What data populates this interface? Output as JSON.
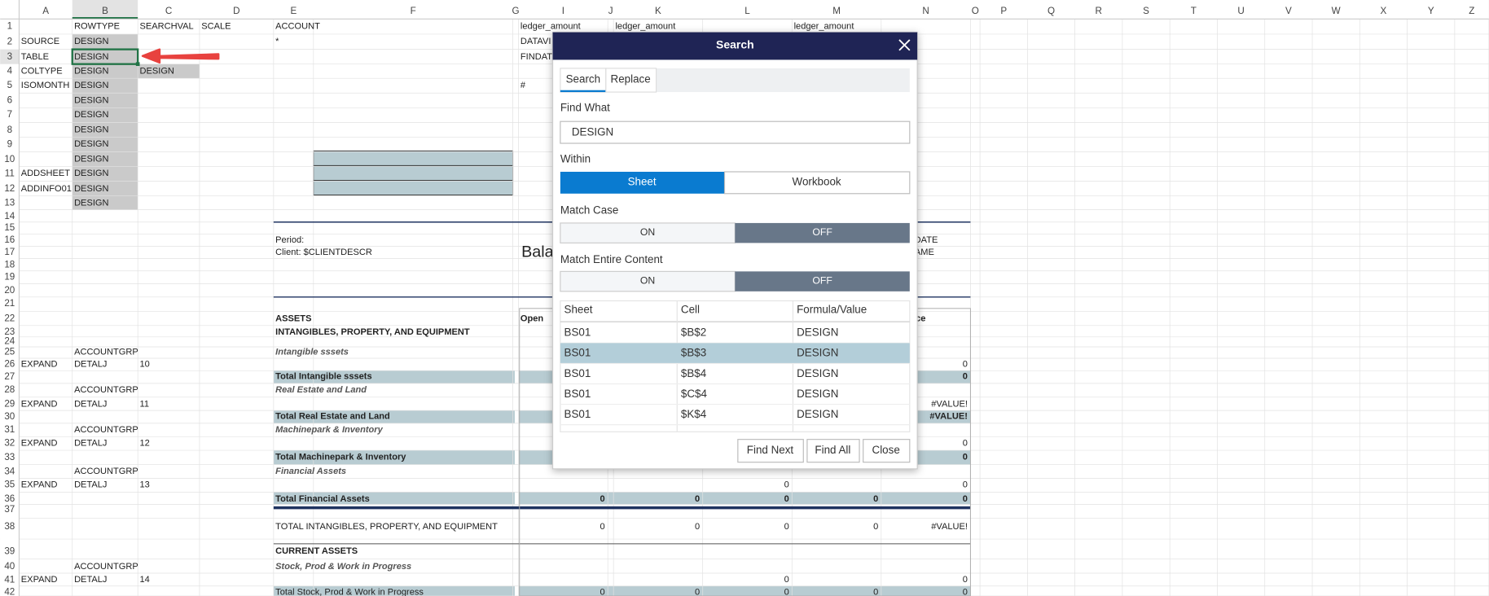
{
  "sheet": {
    "columns": [
      "A",
      "B",
      "C",
      "D",
      "E",
      "F",
      "G",
      "I",
      "J",
      "K",
      "L",
      "M",
      "N",
      "O",
      "P",
      "Q",
      "R",
      "S",
      "T",
      "U",
      "V",
      "W",
      "X",
      "Y",
      "Z"
    ],
    "row_numbers": [
      "1",
      "2",
      "3",
      "4",
      "5",
      "6",
      "7",
      "8",
      "9",
      "10",
      "11",
      "12",
      "13",
      "14",
      "15",
      "16",
      "17",
      "18",
      "19",
      "20",
      "21",
      "22",
      "23",
      "24",
      "25",
      "26",
      "27",
      "28",
      "29",
      "30",
      "31",
      "32",
      "33",
      "34",
      "35",
      "36",
      "37",
      "38",
      "39",
      "40",
      "41",
      "42"
    ],
    "cells": {
      "1": {
        "B": "ROWTYPE",
        "C": "SEARCHVAL",
        "D": "SCALE",
        "E": "ACCOUNT",
        "I": "ledger_amount",
        "K": "ledger_amount",
        "M": "ledger_amount"
      },
      "2": {
        "A": "SOURCE",
        "B": "DESIGN",
        "E": "*",
        "I": "DATAVI"
      },
      "3": {
        "A": "TABLE",
        "B": "DESIGN",
        "I": "FINDAT"
      },
      "4": {
        "A": "COLTYPE",
        "B": "DESIGN",
        "C": "DESIGN"
      },
      "5": {
        "A": "ISOMONTH",
        "B": "DESIGN",
        "I": "#"
      },
      "6": {
        "B": "DESIGN"
      },
      "7": {
        "B": "DESIGN"
      },
      "8": {
        "B": "DESIGN"
      },
      "9": {
        "B": "DESIGN"
      },
      "10": {
        "B": "DESIGN"
      },
      "11": {
        "A": "ADDSHEET",
        "B": "DESIGN"
      },
      "12": {
        "A": "ADDINFO01",
        "B": "DESIGN"
      },
      "13": {
        "B": "DESIGN"
      },
      "16": {
        "E": "Period:",
        "N": "SHORTDATE"
      },
      "17": {
        "E": "Client: $CLIENTDESCR",
        "F": "Bala",
        "N": "USERNAME"
      },
      "22": {
        "E": "ASSETS",
        "I": "Open",
        "N": "g Balance"
      },
      "23": {
        "E": "INTANGIBLES, PROPERTY, AND EQUIPMENT"
      },
      "25": {
        "B": "ACCOUNTGRP",
        "E": "Intangible sssets"
      },
      "26": {
        "A": "EXPAND",
        "B": "DETALJ",
        "C": 10,
        "N": 0
      },
      "27": {
        "E": "Total Intangible sssets",
        "N": 0
      },
      "28": {
        "B": "ACCOUNTGRP",
        "E": "Real Estate and Land"
      },
      "29": {
        "A": "EXPAND",
        "B": "DETALJ",
        "C": 11,
        "N": "#VALUE!"
      },
      "30": {
        "E": "Total Real Estate and Land",
        "N": "#VALUE!"
      },
      "31": {
        "B": "ACCOUNTGRP",
        "E": "Machinepark & Inventory"
      },
      "32": {
        "A": "EXPAND",
        "B": "DETALJ",
        "C": 12,
        "N": 0
      },
      "33": {
        "E": "Total Machinepark & Inventory",
        "N": 0
      },
      "34": {
        "B": "ACCOUNTGRP",
        "E": "Financial Assets"
      },
      "35": {
        "A": "EXPAND",
        "B": "DETALJ",
        "C": 13,
        "L": 0,
        "N": 0
      },
      "36": {
        "E": "Total Financial Assets",
        "I": 0,
        "K": 0,
        "L": 0,
        "M": 0,
        "N": 0
      },
      "38": {
        "E": "TOTAL INTANGIBLES, PROPERTY, AND EQUIPMENT",
        "I": 0,
        "K": 0,
        "L": 0,
        "M": 0,
        "N": "#VALUE!"
      },
      "39": {
        "E": "CURRENT ASSETS"
      },
      "40": {
        "B": "ACCOUNTGRP",
        "E": "Stock, Prod & Work in Progress"
      },
      "41": {
        "A": "EXPAND",
        "B": "DETALJ",
        "C": 14,
        "L": 0,
        "N": 0
      },
      "42": {
        "E": "Total Stock, Prod & Work in Progress",
        "I": 0,
        "K": 0,
        "L": 0,
        "M": 0,
        "N": 0
      }
    }
  },
  "dialog": {
    "title": "Search",
    "tabs": [
      "Search",
      "Replace"
    ],
    "find_label": "Find What",
    "find_value": "DESIGN",
    "within_label": "Within",
    "within_options": [
      "Sheet",
      "Workbook"
    ],
    "match_case_label": "Match Case",
    "match_case_options": [
      "ON",
      "OFF"
    ],
    "match_entire_label": "Match Entire Content",
    "match_entire_options": [
      "ON",
      "OFF"
    ],
    "results_header": [
      "Sheet",
      "Cell",
      "Formula/Value"
    ],
    "results": [
      [
        "BS01",
        "$B$2",
        "DESIGN"
      ],
      [
        "BS01",
        "$B$3",
        "DESIGN"
      ],
      [
        "BS01",
        "$B$4",
        "DESIGN"
      ],
      [
        "BS01",
        "$C$4",
        "DESIGN"
      ],
      [
        "BS01",
        "$K$4",
        "DESIGN"
      ]
    ],
    "buttons": [
      "Find Next",
      "Find All",
      "Close"
    ]
  }
}
